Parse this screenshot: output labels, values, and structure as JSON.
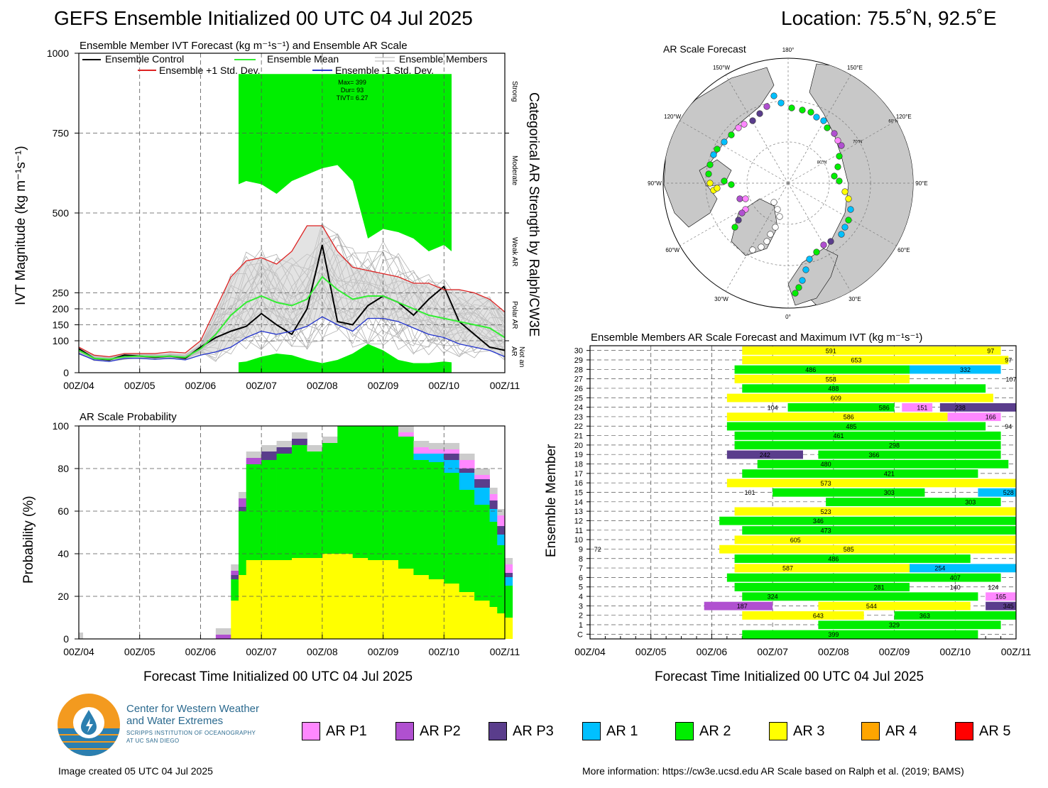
{
  "header": {
    "title": "GEFS Ensemble Initialized 00 UTC 04 Jul 2025",
    "location": "Location: 75.5˚N, 92.5˚E"
  },
  "colors": {
    "ar_p1": "#ff88ff",
    "ar_p2": "#b050d0",
    "ar_p3": "#5a3d8c",
    "ar1": "#00c0ff",
    "ar2": "#00ee00",
    "ar3": "#ffff00",
    "ar4": "#ffa500",
    "ar5": "#ff0000",
    "control": "#000000",
    "mean": "#33ee33",
    "plus_sd": "#dd2222",
    "minus_sd": "#2233cc",
    "members": "#b0b0b0"
  },
  "x_ticks": [
    "00Z/04",
    "00Z/05",
    "00Z/06",
    "00Z/07",
    "00Z/08",
    "00Z/09",
    "00Z/10",
    "00Z/11"
  ],
  "ivt_panel": {
    "title": "Ensemble Member IVT Forecast (kg m⁻¹s⁻¹) and Ensemble AR Scale",
    "ylabel": "IVT Magnitude (kg m⁻¹s⁻¹)",
    "right_label": "Categorical AR Strength by Ralph/CW3E",
    "cat_labels": [
      "Strong",
      "Moderate",
      "Weak AR",
      "Polar AR",
      "Not an AR"
    ],
    "legend": {
      "control": "Ensemble Control",
      "mean": "Ensemble Mean",
      "members": "Ensemble Members",
      "plus": "Ensemble +1 Std. Dev.",
      "minus": "Ensemble -1 Std. Dev."
    },
    "stats": {
      "max": "Max= 399",
      "dur": "Dur= 93",
      "tivt": "TIVT= 6.27"
    }
  },
  "prob_panel": {
    "title": "AR Scale Probability",
    "ylabel": "Probability (%)",
    "xlabel": "Forecast Time Initialized 00 UTC 04 Jul 2025"
  },
  "map_panel": {
    "title": "AR Scale Forecast",
    "lon_labels": [
      "180°",
      "150°E",
      "120°E",
      "90°E",
      "60°E",
      "30°E",
      "0°",
      "30°W",
      "60°W",
      "90°W",
      "120°W",
      "150°W"
    ],
    "lat_labels": [
      "60°N",
      "70°N",
      "80°N"
    ]
  },
  "members_panel": {
    "title": "Ensemble Members AR Scale Forecast and Maximum IVT (kg m⁻¹s⁻¹)",
    "ylabel": "Ensemble Member",
    "xlabel": "Forecast Time Initialized 00 UTC 04 Jul 2025",
    "rows": [
      "C",
      "1",
      "2",
      "3",
      "4",
      "5",
      "6",
      "7",
      "8",
      "9",
      "10",
      "11",
      "12",
      "13",
      "14",
      "15",
      "16",
      "17",
      "18",
      "19",
      "20",
      "21",
      "22",
      "23",
      "24",
      "25",
      "26",
      "27",
      "28",
      "29",
      "30"
    ]
  },
  "legend": [
    {
      "label": "AR P1",
      "key": "ar_p1"
    },
    {
      "label": "AR P2",
      "key": "ar_p2"
    },
    {
      "label": "AR P3",
      "key": "ar_p3"
    },
    {
      "label": "AR 1",
      "key": "ar1"
    },
    {
      "label": "AR 2",
      "key": "ar2"
    },
    {
      "label": "AR 3",
      "key": "ar3"
    },
    {
      "label": "AR 4",
      "key": "ar4"
    },
    {
      "label": "AR 5",
      "key": "ar5"
    }
  ],
  "logo": {
    "line1": "Center for Western Weather",
    "line2": "and Water Extremes",
    "line3": "SCRIPPS INSTITUTION OF OCEANOGRAPHY",
    "line4": "AT UC SAN DIEGO"
  },
  "footer": {
    "created": "Image created 05 UTC 04 Jul 2025",
    "info": "More information: https://cw3e.ucsd.edu AR Scale based on Ralph et al. (2019; BAMS)"
  },
  "chart_data": [
    {
      "type": "line",
      "name": "ivt_timeseries",
      "x_hours": [
        0,
        6,
        12,
        18,
        24,
        30,
        36,
        42,
        48,
        54,
        60,
        66,
        72,
        78,
        84,
        90,
        96,
        102,
        108,
        114,
        120,
        126,
        132,
        138,
        144,
        150,
        156,
        162,
        168
      ],
      "xlim": [
        0,
        168
      ],
      "ylim": [
        0,
        1000
      ],
      "y_ticks": [
        0,
        100,
        150,
        200,
        250,
        500,
        750,
        1000
      ],
      "series": [
        {
          "name": "Ensemble Control",
          "values": [
            75,
            45,
            40,
            55,
            52,
            48,
            52,
            45,
            80,
            110,
            130,
            145,
            185,
            150,
            120,
            200,
            400,
            160,
            150,
            210,
            240,
            220,
            180,
            230,
            270,
            160,
            120,
            80,
            70
          ]
        },
        {
          "name": "Ensemble Mean",
          "values": [
            70,
            45,
            42,
            50,
            52,
            50,
            52,
            48,
            75,
            120,
            180,
            220,
            240,
            220,
            210,
            230,
            300,
            260,
            230,
            240,
            240,
            220,
            200,
            180,
            170,
            160,
            150,
            140,
            110
          ]
        },
        {
          "name": "Ensemble +1 Std. Dev.",
          "values": [
            80,
            55,
            50,
            60,
            60,
            60,
            65,
            62,
            100,
            200,
            300,
            350,
            360,
            340,
            380,
            460,
            460,
            380,
            330,
            320,
            310,
            300,
            280,
            280,
            260,
            260,
            250,
            230,
            190
          ]
        },
        {
          "name": "Ensemble -1 Std. Dev.",
          "values": [
            60,
            40,
            35,
            45,
            45,
            42,
            45,
            40,
            55,
            65,
            80,
            110,
            130,
            120,
            130,
            145,
            175,
            150,
            130,
            170,
            170,
            160,
            140,
            120,
            110,
            90,
            80,
            70,
            50
          ]
        }
      ],
      "ar_scale_band": {
        "start_hour": 63,
        "end_hour": 147,
        "category": "AR 2"
      }
    },
    {
      "type": "area",
      "name": "ar_scale_probability",
      "xlim": [
        0,
        168
      ],
      "ylim": [
        0,
        100
      ],
      "y_ticks": [
        0,
        20,
        40,
        60,
        80,
        100
      ],
      "x_hours": [
        54,
        57,
        60,
        63,
        66,
        72,
        78,
        84,
        90,
        96,
        102,
        108,
        114,
        120,
        126,
        132,
        138,
        144,
        150,
        156,
        162,
        165,
        168
      ],
      "ar3": [
        0,
        0,
        18,
        30,
        37,
        37,
        37,
        38,
        38,
        40,
        40,
        38,
        37,
        37,
        33,
        30,
        28,
        26,
        22,
        18,
        15,
        12,
        10
      ],
      "ar2": [
        0,
        0,
        10,
        30,
        45,
        47,
        50,
        53,
        50,
        52,
        60,
        62,
        63,
        63,
        62,
        54,
        55,
        52,
        48,
        45,
        40,
        32,
        15
      ],
      "ar1": [
        0,
        0,
        0,
        0,
        0,
        0,
        0,
        0,
        0,
        0,
        0,
        0,
        0,
        0,
        0,
        3,
        4,
        6,
        8,
        8,
        6,
        5,
        4
      ],
      "ar_p3": [
        0,
        0,
        2,
        2,
        0,
        4,
        3,
        3,
        0,
        0,
        0,
        0,
        0,
        0,
        0,
        0,
        0,
        3,
        2,
        4,
        4,
        4,
        2
      ],
      "ar_p2": [
        2,
        2,
        2,
        4,
        3,
        0,
        0,
        0,
        0,
        0,
        0,
        0,
        0,
        0,
        0,
        0,
        0,
        0,
        0,
        0,
        0,
        0,
        0
      ],
      "ar_p1": [
        0,
        0,
        0,
        0,
        0,
        0,
        0,
        0,
        0,
        0,
        0,
        0,
        0,
        0,
        2,
        3,
        2,
        2,
        4,
        2,
        3,
        5,
        4
      ]
    },
    {
      "type": "bar",
      "name": "member_ar_scale",
      "xlim": [
        0,
        168
      ],
      "members": [
        {
          "m": "30",
          "bars": [
            [
              60,
              162,
              "ar3"
            ]
          ],
          "labels": [
            [
              95,
              "591"
            ],
            [
              158,
              "97"
            ]
          ]
        },
        {
          "m": "29",
          "bars": [
            [
              60,
              165,
              "ar3"
            ]
          ],
          "labels": [
            [
              105,
              "653"
            ],
            [
              165,
              "97"
            ]
          ]
        },
        {
          "m": "28",
          "bars": [
            [
              57,
              126,
              "ar2"
            ],
            [
              126,
              162,
              "ar1"
            ]
          ],
          "labels": [
            [
              87,
              "486"
            ],
            [
              148,
              "332"
            ]
          ]
        },
        {
          "m": "27",
          "bars": [
            [
              57,
              126,
              "ar3"
            ]
          ],
          "labels": [
            [
              95,
              "558"
            ],
            [
              166,
              "107"
            ]
          ]
        },
        {
          "m": "26",
          "bars": [
            [
              60,
              156,
              "ar2"
            ]
          ],
          "labels": [
            [
              96,
              "488"
            ]
          ]
        },
        {
          "m": "25",
          "bars": [
            [
              54,
              159,
              "ar3"
            ]
          ],
          "labels": [
            [
              97,
              "609"
            ]
          ]
        },
        {
          "m": "24",
          "bars": [
            [
              78,
              120,
              "ar2"
            ],
            [
              123,
              135,
              "ar_p1"
            ],
            [
              138,
              168,
              "ar_p3"
            ]
          ],
          "labels": [
            [
              72,
              "104"
            ],
            [
              116,
              "586"
            ],
            [
              131,
              "151"
            ],
            [
              146,
              "238"
            ]
          ]
        },
        {
          "m": "23",
          "bars": [
            [
              54,
              141,
              "ar3"
            ],
            [
              141,
              162,
              "ar_p1"
            ]
          ],
          "labels": [
            [
              102,
              "586"
            ],
            [
              158,
              "166"
            ]
          ]
        },
        {
          "m": "22",
          "bars": [
            [
              54,
              156,
              "ar2"
            ]
          ],
          "labels": [
            [
              103,
              "485"
            ],
            [
              165,
              "94"
            ]
          ]
        },
        {
          "m": "21",
          "bars": [
            [
              57,
              162,
              "ar2"
            ]
          ],
          "labels": [
            [
              98,
              "461"
            ]
          ]
        },
        {
          "m": "20",
          "bars": [
            [
              57,
              162,
              "ar2"
            ]
          ],
          "labels": [
            [
              120,
              "298"
            ]
          ]
        },
        {
          "m": "19",
          "bars": [
            [
              54,
              84,
              "ar_p3"
            ],
            [
              90,
              162,
              "ar2"
            ]
          ],
          "labels": [
            [
              69,
              "242"
            ],
            [
              112,
              "366"
            ]
          ]
        },
        {
          "m": "18",
          "bars": [
            [
              66,
              165,
              "ar2"
            ]
          ],
          "labels": [
            [
              93,
              "480"
            ]
          ]
        },
        {
          "m": "17",
          "bars": [
            [
              60,
              153,
              "ar2"
            ]
          ],
          "labels": [
            [
              118,
              "421"
            ]
          ]
        },
        {
          "m": "16",
          "bars": [
            [
              54,
              168,
              "ar3"
            ]
          ],
          "labels": [
            [
              93,
              "573"
            ]
          ]
        },
        {
          "m": "15",
          "bars": [
            [
              72,
              132,
              "ar2"
            ],
            [
              153,
              168,
              "ar1"
            ]
          ],
          "labels": [
            [
              63,
              "101"
            ],
            [
              118,
              "303"
            ],
            [
              165,
              "528"
            ]
          ]
        },
        {
          "m": "14",
          "bars": [
            [
              93,
              162,
              "ar2"
            ]
          ],
          "labels": [
            [
              150,
              "303"
            ]
          ]
        },
        {
          "m": "13",
          "bars": [
            [
              57,
              168,
              "ar3"
            ]
          ],
          "labels": [
            [
              93,
              "523"
            ]
          ]
        },
        {
          "m": "12",
          "bars": [
            [
              51,
              168,
              "ar2"
            ]
          ],
          "labels": [
            [
              90,
              "346"
            ]
          ]
        },
        {
          "m": "11",
          "bars": [
            [
              60,
              168,
              "ar2"
            ]
          ],
          "labels": [
            [
              93,
              "473"
            ]
          ]
        },
        {
          "m": "10",
          "bars": [
            [
              57,
              168,
              "ar3"
            ]
          ],
          "labels": [
            [
              81,
              "605"
            ]
          ]
        },
        {
          "m": "9",
          "bars": [
            [
              51,
              168,
              "ar3"
            ]
          ],
          "labels": [
            [
              3,
              "72"
            ],
            [
              102,
              "585"
            ]
          ]
        },
        {
          "m": "8",
          "bars": [
            [
              57,
              150,
              "ar2"
            ]
          ],
          "labels": [
            [
              96,
              "486"
            ]
          ]
        },
        {
          "m": "7",
          "bars": [
            [
              57,
              126,
              "ar3"
            ],
            [
              126,
              168,
              "ar1"
            ]
          ],
          "labels": [
            [
              78,
              "587"
            ],
            [
              138,
              "254"
            ]
          ]
        },
        {
          "m": "6",
          "bars": [
            [
              54,
              162,
              "ar2"
            ]
          ],
          "labels": [
            [
              144,
              "407"
            ]
          ]
        },
        {
          "m": "5",
          "bars": [
            [
              57,
              126,
              "ar2"
            ]
          ],
          "labels": [
            [
              114,
              "281"
            ],
            [
              144,
              "140"
            ],
            [
              159,
              "124"
            ]
          ]
        },
        {
          "m": "4",
          "bars": [
            [
              60,
              153,
              "ar2"
            ],
            [
              156,
              168,
              "ar_p1"
            ]
          ],
          "labels": [
            [
              72,
              "324"
            ],
            [
              162,
              "165"
            ]
          ]
        },
        {
          "m": "3",
          "bars": [
            [
              45,
              72,
              "ar_p2"
            ],
            [
              90,
              150,
              "ar3"
            ],
            [
              156,
              168,
              "ar_p3"
            ]
          ],
          "labels": [
            [
              60,
              "187"
            ],
            [
              111,
              "544"
            ],
            [
              165,
              "345"
            ]
          ]
        },
        {
          "m": "2",
          "bars": [
            [
              60,
              108,
              "ar3"
            ],
            [
              120,
              168,
              "ar2"
            ]
          ],
          "labels": [
            [
              90,
              "643"
            ],
            [
              132,
              "363"
            ]
          ]
        },
        {
          "m": "1",
          "bars": [
            [
              90,
              162,
              "ar2"
            ]
          ],
          "labels": [
            [
              120,
              "329"
            ]
          ]
        },
        {
          "m": "C",
          "bars": [
            [
              60,
              153,
              "ar2"
            ]
          ],
          "labels": [
            [
              96,
              "399"
            ]
          ]
        }
      ]
    }
  ]
}
